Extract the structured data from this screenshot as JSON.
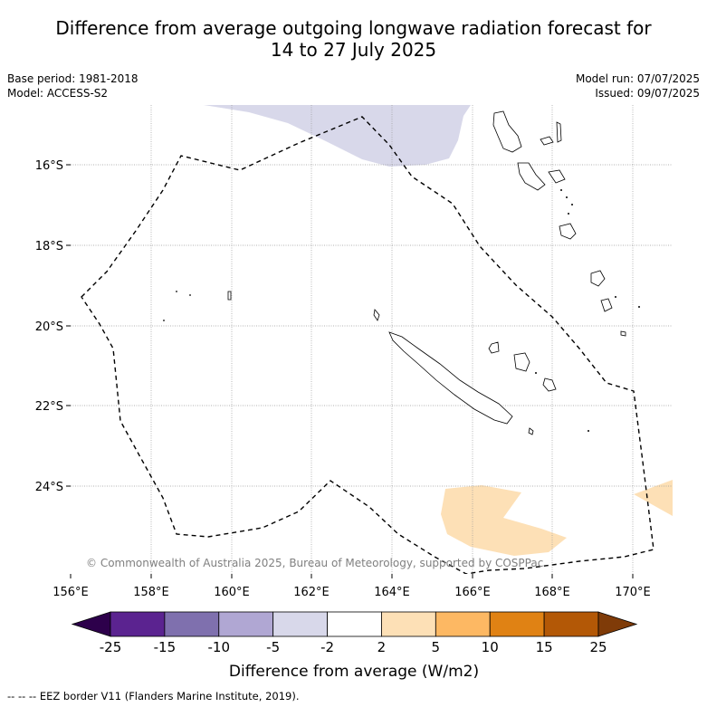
{
  "title_line1": "Difference from average outgoing longwave radiation forecast for",
  "title_line2": "14 to 27 July 2025",
  "base_period": "Base period: 1981-2018",
  "model": "Model: ACCESS-S2",
  "model_run": "Model run: 07/07/2025",
  "issued": "Issued: 09/07/2025",
  "copyright": "© Commonwealth of Australia 2025, Bureau of Meteorology, supported by COSPPac",
  "lon_ticks": [
    "156°E",
    "158°E",
    "160°E",
    "162°E",
    "164°E",
    "166°E",
    "168°E",
    "170°E"
  ],
  "lat_ticks": [
    "16°S",
    "18°S",
    "20°S",
    "22°S",
    "24°S"
  ],
  "colorbar": {
    "label": "Difference from average (W/m2)",
    "tick_labels": [
      "-25",
      "-15",
      "-10",
      "-5",
      "-2",
      "2",
      "5",
      "10",
      "15",
      "25"
    ],
    "colors": [
      "#5b2390",
      "#7f70ae",
      "#b0a7d3",
      "#d8d8ea",
      "#ffffff",
      "#fde0b6",
      "#fdb863",
      "#e08214",
      "#b35806"
    ],
    "under_color": "#2d004b",
    "over_color": "#7f3b08"
  },
  "legend_note": "--  --  -- EEZ border V11 (Flanders Marine Institute, 2019)."
}
